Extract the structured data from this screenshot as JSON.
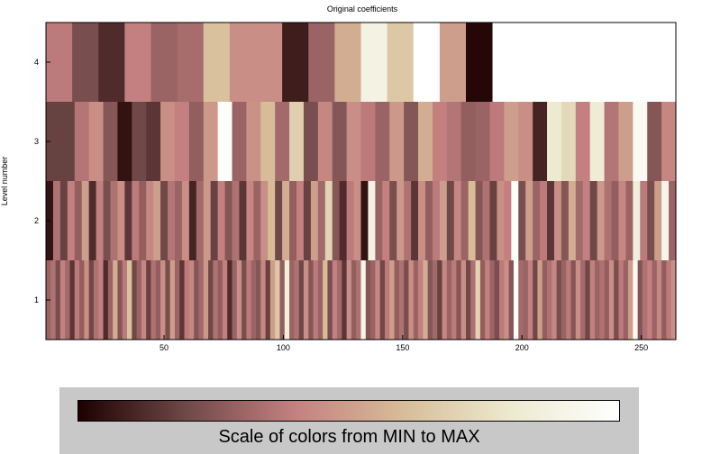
{
  "chart_data": {
    "type": "heatmap",
    "title": "Original coefficients",
    "xlabel": "",
    "ylabel": "Level number",
    "xlim": [
      0.5,
      264.5
    ],
    "ylim": [
      0.5,
      4.5
    ],
    "xticks": [
      50,
      100,
      150,
      200,
      250
    ],
    "yticks": [
      1,
      2,
      3,
      4
    ],
    "colormap": "pink",
    "colormap_stops": [
      "#1e0000",
      "#704848",
      "#c48080",
      "#d8bc98",
      "#ecead0",
      "#ffffff"
    ],
    "levels": [
      {
        "level": 4,
        "cell_width": 11,
        "values": [
          0.38,
          0.22,
          0.12,
          0.4,
          0.3,
          0.33,
          0.62,
          0.45,
          0.45,
          0.08,
          0.3,
          0.55,
          0.88,
          0.65,
          1.0,
          0.5,
          0.02
        ]
      },
      {
        "level": 3,
        "cell_width": 6,
        "values": [
          0.18,
          0.18,
          0.36,
          0.45,
          0.25,
          0.05,
          0.2,
          0.15,
          0.45,
          0.4,
          0.28,
          0.48,
          0.98,
          0.3,
          0.46,
          0.6,
          0.32,
          0.68,
          0.22,
          0.42,
          0.25,
          0.45,
          0.38,
          0.3,
          0.48,
          0.25,
          0.55,
          0.4,
          0.36,
          0.28,
          0.3,
          0.38,
          0.5,
          0.45,
          0.1,
          0.8,
          0.72,
          0.4,
          0.82,
          0.36,
          0.5,
          0.95,
          0.25,
          0.42
        ]
      },
      {
        "level": 2,
        "cell_width": 3,
        "values": [
          0.05,
          0.35,
          0.18,
          0.4,
          0.28,
          0.5,
          0.12,
          0.4,
          0.22,
          0.35,
          0.45,
          0.15,
          0.38,
          0.28,
          0.42,
          0.5,
          0.2,
          0.36,
          0.3,
          0.45,
          0.1,
          0.32,
          0.48,
          0.18,
          0.4,
          0.25,
          0.35,
          0.15,
          0.42,
          0.3,
          0.45,
          0.6,
          0.2,
          0.55,
          0.28,
          0.4,
          0.18,
          0.5,
          0.32,
          0.7,
          0.25,
          0.12,
          0.38,
          0.45,
          0.05,
          0.88,
          0.3,
          0.4,
          0.22,
          0.48,
          0.35,
          0.15,
          0.45,
          0.28,
          0.38,
          0.5,
          0.2,
          0.42,
          0.3,
          0.6,
          0.25,
          0.35,
          0.18,
          0.45,
          0.4,
          0.98,
          0.22,
          0.5,
          0.3,
          0.38,
          0.15,
          0.45,
          0.25,
          0.55,
          0.32,
          0.4,
          0.2,
          0.48,
          0.35,
          0.28,
          0.42,
          0.3,
          0.85,
          0.38,
          0.22,
          0.5,
          0.9,
          0.3,
          0.45
        ]
      },
      {
        "level": 1,
        "cell_width": 2,
        "values": [
          0.3,
          0.35,
          0.22,
          0.4,
          0.32,
          0.15,
          0.38,
          0.28,
          0.45,
          0.2,
          0.35,
          0.4,
          0.12,
          0.3,
          0.55,
          0.25,
          0.38,
          0.62,
          0.2,
          0.3,
          0.42,
          0.18,
          0.35,
          0.28,
          0.45,
          0.22,
          0.5,
          0.3,
          0.15,
          0.38,
          0.42,
          0.25,
          0.32,
          0.48,
          0.2,
          0.35,
          0.28,
          0.4,
          0.12,
          0.3,
          0.45,
          0.22,
          0.38,
          0.3,
          0.25,
          0.42,
          0.18,
          0.5,
          0.65,
          0.28,
          0.85,
          0.3,
          0.35,
          0.2,
          0.45,
          0.25,
          0.38,
          0.3,
          0.6,
          0.22,
          0.4,
          0.32,
          0.15,
          0.45,
          0.28,
          0.35,
          0.9,
          0.25,
          0.3,
          0.42,
          0.2,
          0.38,
          0.5,
          0.28,
          0.35,
          0.22,
          0.45,
          0.3,
          0.4,
          0.55,
          0.25,
          0.32,
          0.18,
          0.42,
          0.3,
          0.38,
          0.25,
          0.45,
          0.2,
          0.35,
          0.7,
          0.28,
          0.4,
          0.3,
          0.22,
          0.38,
          0.45,
          0.25,
          0.98,
          0.32,
          0.3,
          0.4,
          0.2,
          0.5,
          0.28,
          0.35,
          0.42,
          0.22,
          0.3,
          0.38,
          0.25,
          0.45,
          0.32,
          0.2,
          0.4,
          0.3,
          0.35,
          0.28,
          0.45,
          0.22,
          0.38,
          0.3,
          0.5,
          0.95,
          0.25,
          0.35,
          0.4,
          0.3,
          0.42,
          0.28,
          0.38,
          0.45
        ]
      }
    ]
  },
  "colorbar": {
    "label": "Scale of colors from MIN to MAX"
  }
}
